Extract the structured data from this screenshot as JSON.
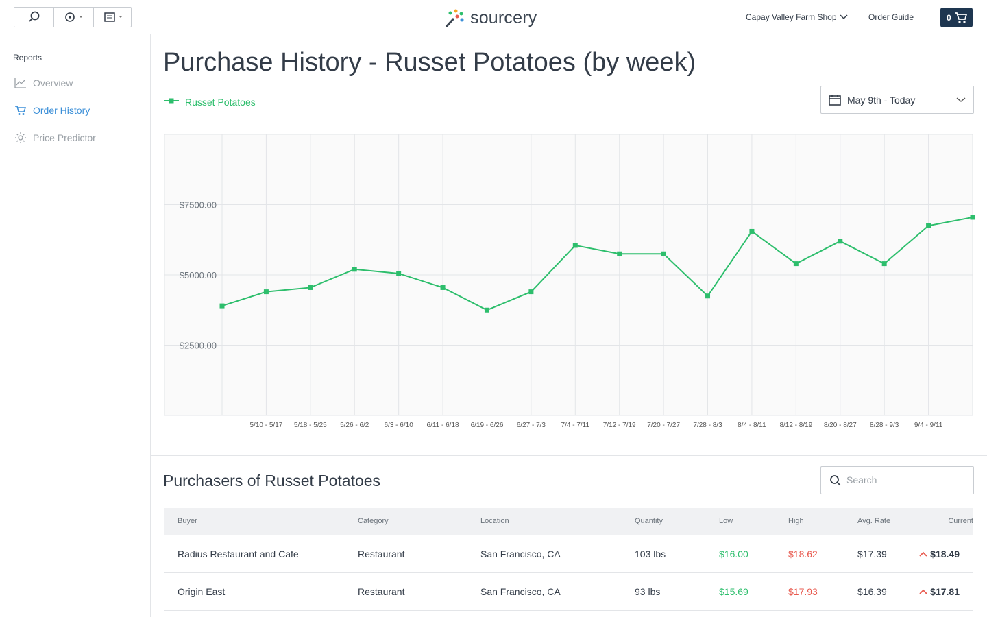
{
  "header": {
    "logo": "sourcery",
    "shop": "Capay Valley Farm Shop",
    "order_guide": "Order Guide",
    "cart_count": "0"
  },
  "sidebar": {
    "heading": "Reports",
    "items": [
      "Overview",
      "Order History",
      "Price Predictor"
    ]
  },
  "date_range": "May 9th - Today",
  "chart_data": {
    "type": "line",
    "title": "Purchase History - Russet Potatoes (by week)",
    "categories": [
      null,
      "5/10 - 5/17",
      "5/18 - 5/25",
      "5/26 - 6/2",
      "6/3 - 6/10",
      "6/11 - 6/18",
      "6/19 - 6/26",
      "6/27 - 7/3",
      "7/4 - 7/11",
      "7/12 - 7/19",
      "7/20 - 7/27",
      "7/28 - 8/3",
      "8/4 - 8/11",
      "8/12 - 8/19",
      "8/20 - 8/27",
      "8/28 - 9/3",
      "9/4 - 9/11",
      null
    ],
    "series": [
      {
        "name": "Russet Potatoes",
        "color": "#2dbe6c",
        "values": [
          3900,
          4400,
          4550,
          5200,
          5050,
          4550,
          3750,
          4400,
          6050,
          5750,
          5750,
          4250,
          6550,
          5400,
          6200,
          5400,
          6750,
          7050
        ]
      }
    ],
    "ylim": [
      0,
      10000
    ],
    "yticks": [
      {
        "value": 2500,
        "label": "$2500.00"
      },
      {
        "value": 5000,
        "label": "$5000.00"
      },
      {
        "value": 7500,
        "label": "$7500.00"
      }
    ],
    "grid": true,
    "legend": "top-left"
  },
  "table": {
    "title": "Purchasers of Russet Potatoes",
    "search_placeholder": "Search",
    "columns": [
      "Buyer",
      "Category",
      "Location",
      "Quantity",
      "Low",
      "High",
      "Avg. Rate",
      "Current"
    ],
    "rows": [
      [
        "Radius Restaurant and Cafe",
        "Restaurant",
        "San Francisco, CA",
        "103 lbs",
        "$16.00",
        "$18.62",
        "$17.39",
        "$18.49"
      ],
      [
        "Origin East",
        "Restaurant",
        "San Francisco, CA",
        "93 lbs",
        "$15.69",
        "$17.93",
        "$16.39",
        "$17.81"
      ]
    ]
  }
}
